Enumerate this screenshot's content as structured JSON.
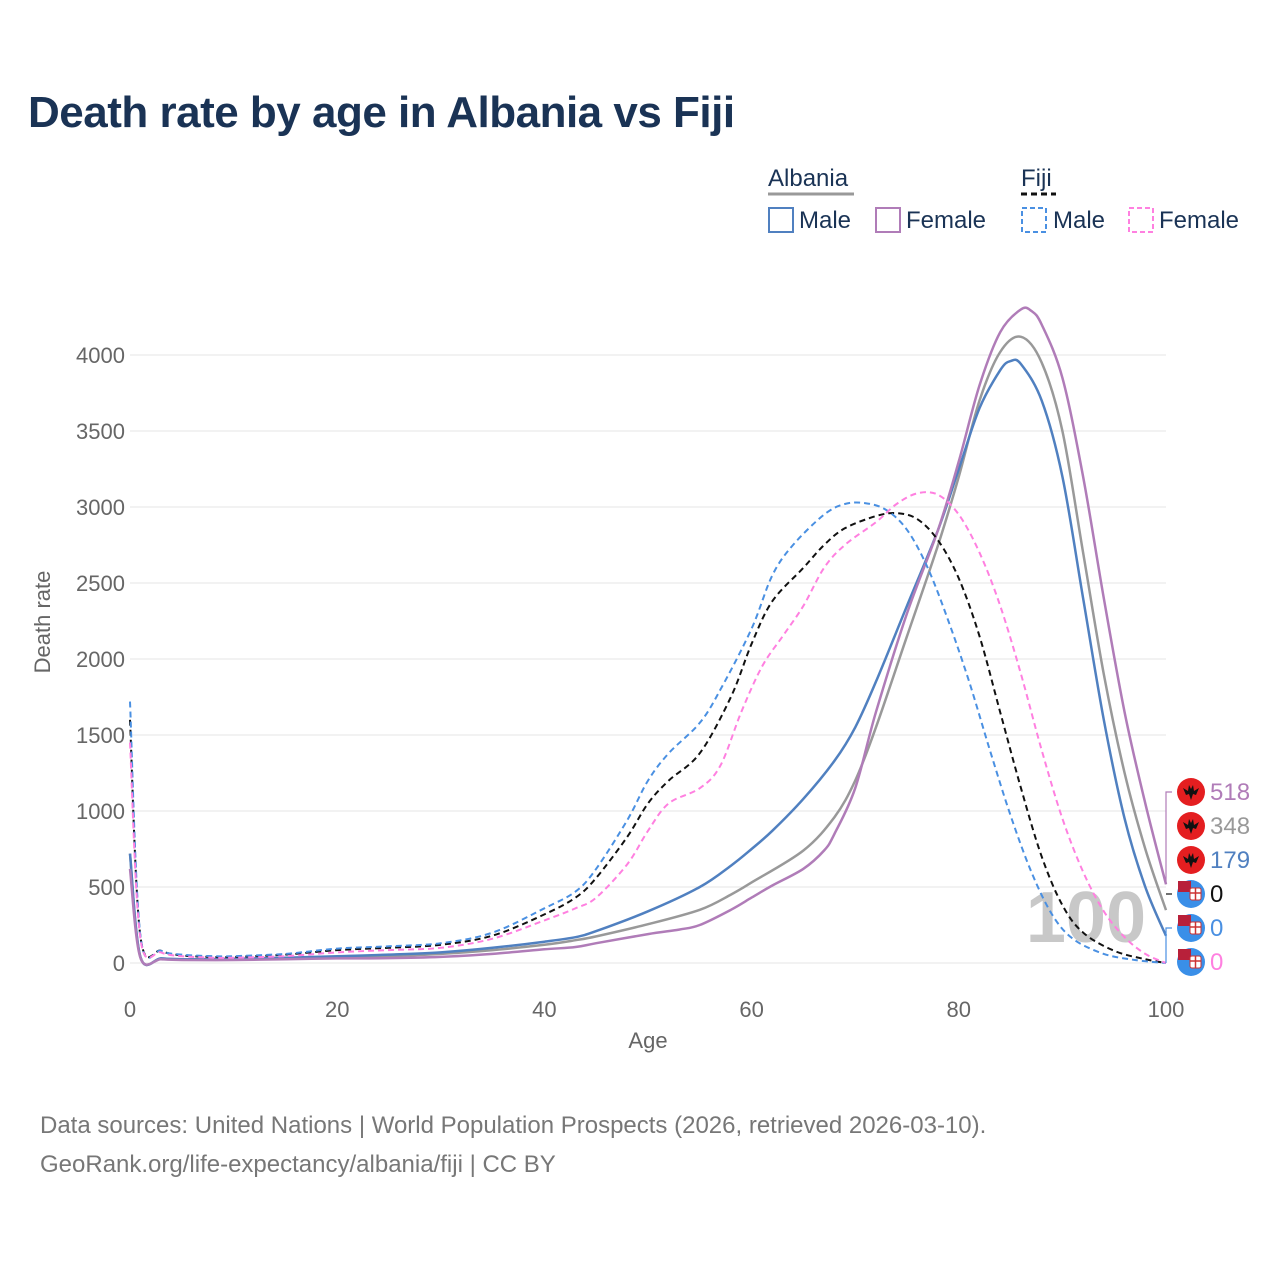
{
  "page": {
    "footer_line1": "Data sources: United Nations | World Population Prospects (2026, retrieved 2026-03-10).",
    "footer_line2": "GeoRank.org/life-expectancy/albania/fiji | CC BY"
  },
  "chart_data": {
    "type": "line",
    "title": "Death rate by age in Albania vs Fiji",
    "xlabel": "Age",
    "ylabel": "Death rate",
    "xlim": [
      0,
      100
    ],
    "ylim": [
      0,
      4300
    ],
    "x_ticks": [
      0,
      20,
      40,
      60,
      80,
      100
    ],
    "y_ticks": [
      0,
      500,
      1000,
      1500,
      2000,
      2500,
      3000,
      3500,
      4000
    ],
    "watermark": "100",
    "legend": {
      "groups": [
        {
          "name": "Albania",
          "entries": [
            {
              "label": "Male",
              "series": "albania_male"
            },
            {
              "label": "Female",
              "series": "albania_female"
            }
          ]
        },
        {
          "name": "Fiji",
          "entries": [
            {
              "label": "Male",
              "series": "fiji_male"
            },
            {
              "label": "Female",
              "series": "fiji_female"
            }
          ]
        }
      ]
    },
    "end_labels": [
      {
        "value": "518",
        "color": "#b07cb8",
        "flag": "albania"
      },
      {
        "value": "348",
        "color": "#999999",
        "flag": "albania"
      },
      {
        "value": "179",
        "color": "#5080c0",
        "flag": "albania"
      },
      {
        "value": "0",
        "color": "#111111",
        "flag": "fiji"
      },
      {
        "value": "0",
        "color": "#4a90e2",
        "flag": "fiji"
      },
      {
        "value": "0",
        "color": "#ff80e0",
        "flag": "fiji"
      }
    ],
    "series": [
      {
        "id": "albania_total",
        "name": "Albania",
        "color": "#999999",
        "dash": "",
        "width": 2.5,
        "points": [
          [
            0,
            720
          ],
          [
            1,
            40
          ],
          [
            3,
            30
          ],
          [
            5,
            25
          ],
          [
            10,
            25
          ],
          [
            15,
            30
          ],
          [
            20,
            40
          ],
          [
            25,
            45
          ],
          [
            30,
            60
          ],
          [
            35,
            85
          ],
          [
            40,
            120
          ],
          [
            43,
            150
          ],
          [
            45,
            175
          ],
          [
            50,
            255
          ],
          [
            55,
            350
          ],
          [
            58,
            450
          ],
          [
            60,
            530
          ],
          [
            65,
            740
          ],
          [
            68,
            960
          ],
          [
            70,
            1200
          ],
          [
            72,
            1550
          ],
          [
            75,
            2150
          ],
          [
            78,
            2750
          ],
          [
            80,
            3200
          ],
          [
            82,
            3700
          ],
          [
            84,
            4020
          ],
          [
            86,
            4120
          ],
          [
            88,
            3950
          ],
          [
            90,
            3500
          ],
          [
            92,
            2700
          ],
          [
            94,
            1900
          ],
          [
            96,
            1250
          ],
          [
            98,
            750
          ],
          [
            100,
            348
          ]
        ]
      },
      {
        "id": "albania_male",
        "name": "Male",
        "color": "#5080c0",
        "dash": "",
        "width": 2.5,
        "points": [
          [
            0,
            720
          ],
          [
            1,
            40
          ],
          [
            3,
            30
          ],
          [
            5,
            25
          ],
          [
            10,
            28
          ],
          [
            15,
            35
          ],
          [
            20,
            45
          ],
          [
            25,
            55
          ],
          [
            30,
            70
          ],
          [
            35,
            100
          ],
          [
            40,
            140
          ],
          [
            43,
            170
          ],
          [
            45,
            210
          ],
          [
            50,
            340
          ],
          [
            55,
            500
          ],
          [
            58,
            640
          ],
          [
            60,
            750
          ],
          [
            62,
            870
          ],
          [
            65,
            1080
          ],
          [
            68,
            1330
          ],
          [
            70,
            1550
          ],
          [
            72,
            1850
          ],
          [
            75,
            2350
          ],
          [
            78,
            2850
          ],
          [
            80,
            3250
          ],
          [
            82,
            3650
          ],
          [
            84,
            3900
          ],
          [
            85,
            3960
          ],
          [
            86,
            3940
          ],
          [
            88,
            3700
          ],
          [
            90,
            3200
          ],
          [
            92,
            2400
          ],
          [
            94,
            1600
          ],
          [
            96,
            950
          ],
          [
            98,
            500
          ],
          [
            100,
            179
          ]
        ]
      },
      {
        "id": "albania_female",
        "name": "Female",
        "color": "#b07cb8",
        "dash": "",
        "width": 2.5,
        "points": [
          [
            0,
            620
          ],
          [
            1,
            35
          ],
          [
            3,
            25
          ],
          [
            5,
            20
          ],
          [
            10,
            20
          ],
          [
            15,
            25
          ],
          [
            20,
            30
          ],
          [
            25,
            32
          ],
          [
            30,
            40
          ],
          [
            35,
            60
          ],
          [
            40,
            90
          ],
          [
            43,
            105
          ],
          [
            45,
            130
          ],
          [
            50,
            190
          ],
          [
            53,
            220
          ],
          [
            55,
            250
          ],
          [
            58,
            350
          ],
          [
            60,
            430
          ],
          [
            62,
            510
          ],
          [
            65,
            620
          ],
          [
            67,
            740
          ],
          [
            68,
            850
          ],
          [
            70,
            1150
          ],
          [
            72,
            1650
          ],
          [
            75,
            2300
          ],
          [
            78,
            2850
          ],
          [
            80,
            3300
          ],
          [
            82,
            3800
          ],
          [
            84,
            4150
          ],
          [
            86,
            4300
          ],
          [
            87,
            4290
          ],
          [
            88,
            4200
          ],
          [
            90,
            3850
          ],
          [
            92,
            3200
          ],
          [
            94,
            2400
          ],
          [
            96,
            1650
          ],
          [
            98,
            1050
          ],
          [
            100,
            518
          ]
        ]
      },
      {
        "id": "fiji_total",
        "name": "Fiji",
        "color": "#111111",
        "dash": "6,4",
        "width": 2,
        "points": [
          [
            0,
            1600
          ],
          [
            1,
            175
          ],
          [
            3,
            80
          ],
          [
            5,
            50
          ],
          [
            8,
            40
          ],
          [
            10,
            40
          ],
          [
            15,
            55
          ],
          [
            20,
            85
          ],
          [
            25,
            100
          ],
          [
            30,
            120
          ],
          [
            35,
            180
          ],
          [
            40,
            320
          ],
          [
            43,
            430
          ],
          [
            45,
            560
          ],
          [
            48,
            830
          ],
          [
            50,
            1050
          ],
          [
            52,
            1200
          ],
          [
            55,
            1380
          ],
          [
            58,
            1750
          ],
          [
            60,
            2100
          ],
          [
            62,
            2380
          ],
          [
            65,
            2600
          ],
          [
            67,
            2750
          ],
          [
            69,
            2860
          ],
          [
            72,
            2940
          ],
          [
            74,
            2960
          ],
          [
            76,
            2920
          ],
          [
            78,
            2780
          ],
          [
            80,
            2530
          ],
          [
            82,
            2150
          ],
          [
            84,
            1650
          ],
          [
            86,
            1150
          ],
          [
            88,
            700
          ],
          [
            90,
            380
          ],
          [
            92,
            200
          ],
          [
            95,
            80
          ],
          [
            98,
            25
          ],
          [
            100,
            0
          ]
        ]
      },
      {
        "id": "fiji_male",
        "name": "Male",
        "color": "#4a90e2",
        "dash": "6,4",
        "width": 2,
        "points": [
          [
            0,
            1720
          ],
          [
            1,
            180
          ],
          [
            3,
            80
          ],
          [
            5,
            55
          ],
          [
            8,
            45
          ],
          [
            10,
            45
          ],
          [
            15,
            60
          ],
          [
            20,
            95
          ],
          [
            25,
            110
          ],
          [
            30,
            130
          ],
          [
            35,
            200
          ],
          [
            40,
            360
          ],
          [
            43,
            470
          ],
          [
            45,
            620
          ],
          [
            48,
            940
          ],
          [
            50,
            1200
          ],
          [
            52,
            1380
          ],
          [
            55,
            1580
          ],
          [
            57,
            1800
          ],
          [
            60,
            2200
          ],
          [
            62,
            2550
          ],
          [
            64,
            2750
          ],
          [
            67,
            2950
          ],
          [
            69,
            3020
          ],
          [
            71,
            3025
          ],
          [
            73,
            2980
          ],
          [
            75,
            2850
          ],
          [
            77,
            2600
          ],
          [
            79,
            2250
          ],
          [
            81,
            1850
          ],
          [
            83,
            1400
          ],
          [
            85,
            970
          ],
          [
            87,
            600
          ],
          [
            89,
            320
          ],
          [
            91,
            160
          ],
          [
            94,
            60
          ],
          [
            97,
            20
          ],
          [
            100,
            0
          ]
        ]
      },
      {
        "id": "fiji_female",
        "name": "Female",
        "color": "#ff80e0",
        "dash": "6,4",
        "width": 2,
        "points": [
          [
            0,
            1450
          ],
          [
            1,
            160
          ],
          [
            3,
            70
          ],
          [
            5,
            45
          ],
          [
            8,
            35
          ],
          [
            10,
            35
          ],
          [
            15,
            45
          ],
          [
            20,
            70
          ],
          [
            25,
            85
          ],
          [
            30,
            100
          ],
          [
            35,
            160
          ],
          [
            40,
            280
          ],
          [
            43,
            360
          ],
          [
            45,
            430
          ],
          [
            48,
            650
          ],
          [
            50,
            870
          ],
          [
            52,
            1050
          ],
          [
            55,
            1150
          ],
          [
            57,
            1300
          ],
          [
            59,
            1650
          ],
          [
            61,
            1950
          ],
          [
            63,
            2150
          ],
          [
            65,
            2350
          ],
          [
            67,
            2600
          ],
          [
            69,
            2750
          ],
          [
            72,
            2900
          ],
          [
            74,
            3020
          ],
          [
            76,
            3090
          ],
          [
            78,
            3080
          ],
          [
            80,
            2950
          ],
          [
            82,
            2700
          ],
          [
            84,
            2350
          ],
          [
            86,
            1900
          ],
          [
            88,
            1400
          ],
          [
            90,
            950
          ],
          [
            92,
            600
          ],
          [
            94,
            340
          ],
          [
            96,
            170
          ],
          [
            98,
            60
          ],
          [
            100,
            0
          ]
        ]
      }
    ]
  }
}
